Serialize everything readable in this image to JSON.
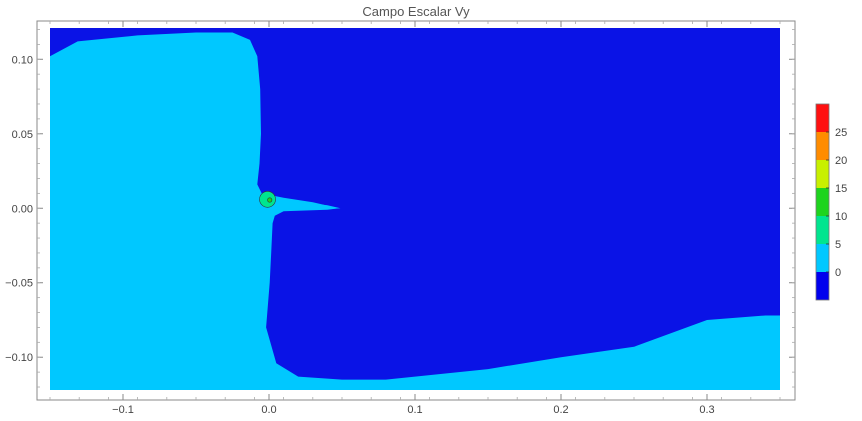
{
  "chart_data": {
    "type": "heatmap",
    "title": "Campo Escalar Vy",
    "xlabel": "",
    "ylabel": "",
    "xlim": [
      -0.15,
      0.35
    ],
    "ylim": [
      -0.125,
      0.125
    ],
    "x_ticks": [
      -0.1,
      0.0,
      0.1,
      0.2,
      0.3
    ],
    "x_tick_labels": [
      "−0.1",
      "0.0",
      "0.1",
      "0.2",
      "0.3"
    ],
    "y_ticks": [
      0.1,
      0.05,
      0.0,
      -0.05,
      -0.1
    ],
    "y_tick_labels": [
      "0.10",
      "0.05",
      "0.00",
      "−0.05",
      "−0.10"
    ],
    "grid": false,
    "legend": "colorbar-right",
    "colorbar": {
      "levels": [
        -5,
        0,
        5,
        10,
        15,
        20,
        25,
        30
      ],
      "tick_values": [
        0,
        5,
        10,
        15,
        20,
        25
      ],
      "tick_labels": [
        "0",
        "5",
        "10",
        "15",
        "20",
        "25"
      ],
      "colors": [
        "#0000ee",
        "#00c8ff",
        "#00e58f",
        "#1ed41e",
        "#c8f000",
        "#ff8c00",
        "#ff1010"
      ]
    },
    "regions": [
      {
        "name": "low-speed-region",
        "range": [
          -5,
          0
        ],
        "color": "#0a13e6",
        "boundary": [
          [
            -0.131,
            0.112
          ],
          [
            -0.09,
            0.116
          ],
          [
            -0.05,
            0.118
          ],
          [
            -0.025,
            0.118
          ],
          [
            -0.013,
            0.113
          ],
          [
            -0.008,
            0.102
          ],
          [
            -0.006,
            0.08
          ],
          [
            -0.0055,
            0.05
          ],
          [
            -0.0065,
            0.03
          ],
          [
            -0.008,
            0.016
          ],
          [
            -0.005,
            0.01
          ],
          [
            0.01,
            0.007
          ],
          [
            0.03,
            0.004
          ],
          [
            0.048,
            0.0
          ],
          [
            0.04,
            -0.001
          ],
          [
            0.01,
            -0.002
          ],
          [
            0.004,
            -0.005
          ],
          [
            0.0025,
            -0.01
          ],
          [
            0.0015,
            -0.03
          ],
          [
            0.0005,
            -0.05
          ],
          [
            -0.002,
            -0.08
          ],
          [
            0.005,
            -0.104
          ],
          [
            0.02,
            -0.113
          ],
          [
            0.05,
            -0.115
          ],
          [
            0.08,
            -0.115
          ],
          [
            0.11,
            -0.112
          ],
          [
            0.15,
            -0.108
          ],
          [
            0.2,
            -0.1
          ],
          [
            0.25,
            -0.093
          ],
          [
            0.3,
            -0.075
          ],
          [
            0.34,
            -0.072
          ],
          [
            0.35,
            -0.072
          ],
          [
            0.35,
            0.121
          ],
          [
            -0.15,
            0.121
          ],
          [
            -0.15,
            0.102
          ]
        ]
      },
      {
        "name": "wake-strip",
        "range": [
          0,
          5
        ],
        "color": "#00c8ff",
        "boundary": [
          [
            0.005,
            0.006
          ],
          [
            0.02,
            0.004
          ],
          [
            0.04,
            0.002
          ],
          [
            0.049,
            0.0
          ],
          [
            0.04,
            -0.0005
          ],
          [
            0.02,
            0.0
          ],
          [
            0.007,
            0.003
          ]
        ]
      },
      {
        "name": "stagnation-ring",
        "range": [
          5,
          10
        ],
        "color": "#00e58f",
        "center": [
          -0.001,
          0.006
        ],
        "radius": 0.0055
      },
      {
        "name": "stagnation-core",
        "range": [
          10,
          15
        ],
        "color": "#1ed41e",
        "center": [
          0.0005,
          0.0055
        ],
        "radius": 0.0015
      }
    ],
    "background_range": [
      0,
      5
    ],
    "background_color": "#00c8ff"
  }
}
